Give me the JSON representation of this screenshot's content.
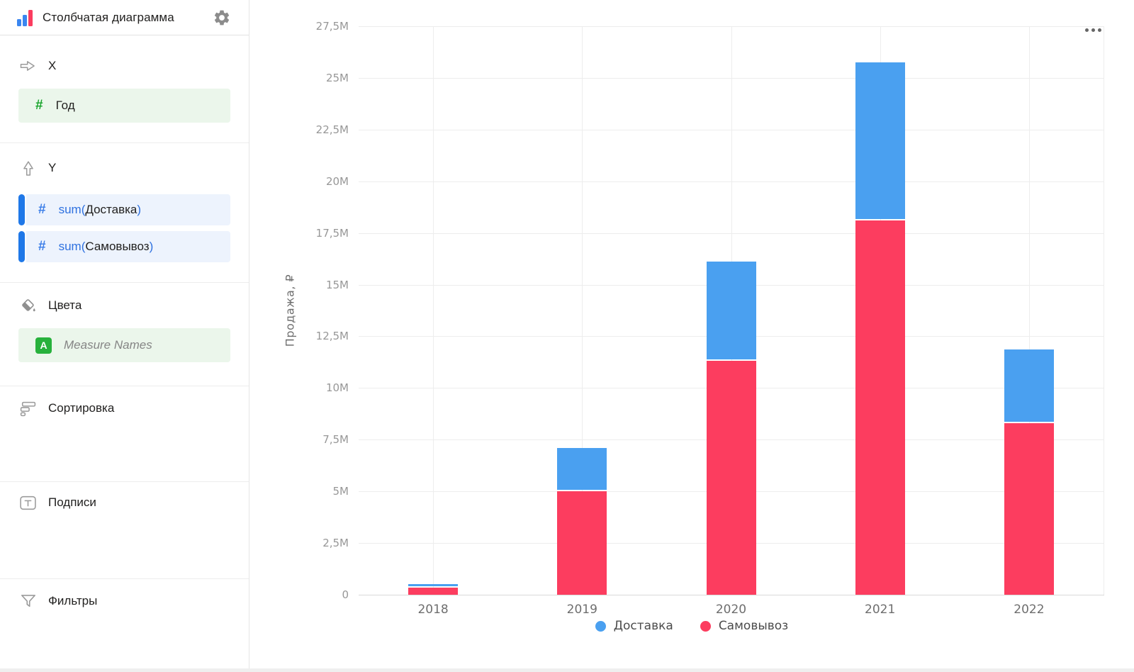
{
  "sidebar": {
    "title": "Столбчатая диаграмма",
    "sections": {
      "x": {
        "label": "X",
        "field": {
          "name": "Год",
          "type": "number"
        }
      },
      "y": {
        "label": "Y",
        "fields": [
          {
            "prefix": "sum(",
            "name": "Доставка",
            "suffix": ")"
          },
          {
            "prefix": "sum(",
            "name": "Самовывоз",
            "suffix": ")"
          }
        ]
      },
      "colors": {
        "label": "Цвета",
        "field": {
          "name": "Measure Names",
          "badge": "A"
        }
      },
      "sorting": {
        "label": "Сортировка"
      },
      "labels": {
        "label": "Подписи"
      },
      "filters": {
        "label": "Фильтры"
      }
    }
  },
  "chart_data": {
    "type": "bar",
    "stacked": true,
    "title": "",
    "xlabel": "",
    "ylabel": "Продажа, ₽",
    "y_unit": "millions ₽",
    "categories": [
      "2018",
      "2019",
      "2020",
      "2021",
      "2022"
    ],
    "series": [
      {
        "name": "Доставка",
        "color": "#4aa0f0",
        "stack_order": "top",
        "values": [
          0.15,
          2.1,
          4.8,
          7.65,
          3.55
        ]
      },
      {
        "name": "Самовывоз",
        "color": "#fc3d5f",
        "stack_order": "bottom",
        "values": [
          0.35,
          5.0,
          11.3,
          18.1,
          8.3
        ]
      }
    ],
    "totals": [
      0.5,
      7.1,
      16.1,
      25.75,
      11.85
    ],
    "ylim": [
      0,
      27.5
    ],
    "yticks": [
      {
        "v": 0,
        "label": "0"
      },
      {
        "v": 2.5,
        "label": "2,5M"
      },
      {
        "v": 5,
        "label": "5M"
      },
      {
        "v": 7.5,
        "label": "7,5M"
      },
      {
        "v": 10,
        "label": "10M"
      },
      {
        "v": 12.5,
        "label": "12,5M"
      },
      {
        "v": 15,
        "label": "15M"
      },
      {
        "v": 17.5,
        "label": "17,5M"
      },
      {
        "v": 20,
        "label": "20M"
      },
      {
        "v": 22.5,
        "label": "22,5M"
      },
      {
        "v": 25,
        "label": "25M"
      },
      {
        "v": 27.5,
        "label": "27,5M"
      }
    ],
    "grid": true,
    "legend_position": "bottom",
    "legend": [
      "Доставка",
      "Самовывоз"
    ]
  },
  "colors": {
    "series_blue": "#4aa0f0",
    "series_red": "#fc3d5f",
    "field_green_bg": "#ebf6eb",
    "field_blue_bg": "#edf3fd",
    "accent_blue": "#1f78e8",
    "badge_green": "#27b13c",
    "logo_blue": "#3a86f0",
    "logo_red": "#fb3c5f"
  }
}
